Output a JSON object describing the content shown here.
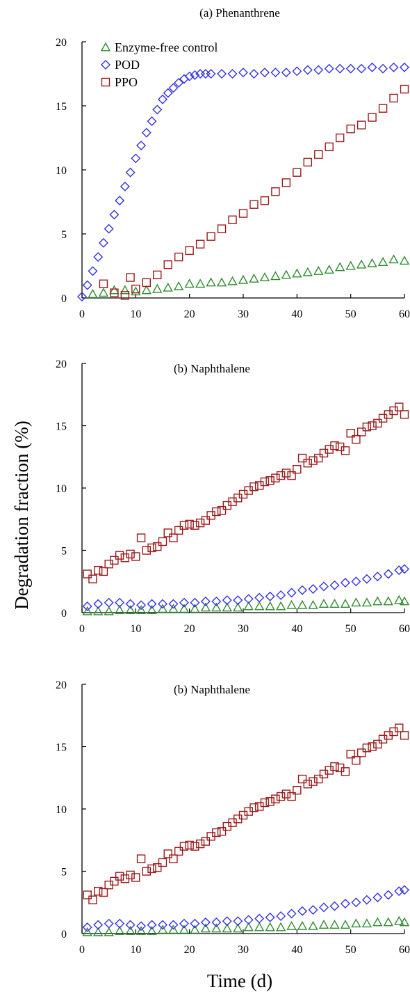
{
  "figure": {
    "ylabel": "Degradation fraction (%)",
    "xlabel": "Time (d)"
  },
  "colors": {
    "enzyme_free": "#2e8b2e",
    "pod": "#3232e6",
    "ppo": "#9b1b1b"
  },
  "chart_data": [
    {
      "type": "scatter",
      "title": "(a) Phenanthrene",
      "xlabel": "",
      "ylabel": "",
      "xlim": [
        0,
        60
      ],
      "ylim": [
        0,
        20
      ],
      "xticks": [
        0,
        10,
        20,
        30,
        40,
        50,
        60
      ],
      "yticks": [
        0,
        5,
        10,
        15,
        20
      ],
      "legend": "top-left",
      "series": [
        {
          "name": "Enzyme-free control",
          "marker": "triangle",
          "x": [
            2,
            4,
            6,
            8,
            10,
            12,
            14,
            16,
            18,
            20,
            22,
            24,
            26,
            28,
            30,
            32,
            34,
            36,
            38,
            40,
            42,
            44,
            46,
            48,
            50,
            52,
            54,
            56,
            58,
            60
          ],
          "y": [
            0.3,
            0.4,
            0.6,
            0.6,
            0.5,
            0.6,
            0.7,
            0.8,
            0.9,
            1.1,
            1.1,
            1.2,
            1.2,
            1.3,
            1.4,
            1.5,
            1.6,
            1.7,
            1.8,
            1.9,
            2.0,
            2.1,
            2.2,
            2.4,
            2.5,
            2.6,
            2.7,
            2.8,
            3.0,
            2.9
          ]
        },
        {
          "name": "POD",
          "marker": "diamond",
          "x": [
            0,
            1,
            2,
            3,
            4,
            5,
            6,
            7,
            8,
            9,
            10,
            11,
            12,
            13,
            14,
            15,
            16,
            17,
            18,
            19,
            20,
            21,
            22,
            23,
            24,
            26,
            28,
            30,
            32,
            34,
            36,
            38,
            40,
            42,
            44,
            46,
            48,
            50,
            52,
            54,
            56,
            58,
            60
          ],
          "y": [
            0.1,
            1.0,
            2.1,
            3.2,
            4.3,
            5.4,
            6.5,
            7.6,
            8.7,
            9.8,
            10.9,
            11.9,
            12.9,
            13.8,
            14.7,
            15.5,
            16.0,
            16.4,
            16.8,
            17.1,
            17.3,
            17.4,
            17.5,
            17.5,
            17.5,
            17.5,
            17.5,
            17.6,
            17.5,
            17.6,
            17.6,
            17.6,
            17.7,
            17.8,
            17.8,
            17.9,
            17.9,
            17.9,
            17.9,
            18.0,
            17.9,
            18.0,
            18.0
          ]
        },
        {
          "name": "PPO",
          "marker": "square",
          "x": [
            4,
            6,
            8,
            9,
            10,
            12,
            14,
            16,
            18,
            20,
            22,
            24,
            26,
            28,
            30,
            32,
            34,
            36,
            38,
            40,
            42,
            44,
            46,
            48,
            50,
            52,
            54,
            56,
            58,
            60
          ],
          "y": [
            1.1,
            0.4,
            0.2,
            1.6,
            0.7,
            1.2,
            1.8,
            2.6,
            3.2,
            3.7,
            4.2,
            4.8,
            5.4,
            6.1,
            6.6,
            7.3,
            7.6,
            8.3,
            9.0,
            9.8,
            10.6,
            11.2,
            11.8,
            12.5,
            13.2,
            13.5,
            14.1,
            14.8,
            15.6,
            16.3
          ]
        }
      ]
    },
    {
      "type": "scatter",
      "title": "(b) Naphthalene",
      "xlabel": "",
      "ylabel": "",
      "xlim": [
        0,
        60
      ],
      "ylim": [
        0,
        20
      ],
      "xticks": [
        0,
        10,
        20,
        30,
        40,
        50,
        60
      ],
      "yticks": [
        0,
        5,
        10,
        15,
        20
      ],
      "series": [
        {
          "name": "Enzyme-free control",
          "marker": "triangle",
          "x": [
            1,
            3,
            5,
            7,
            9,
            11,
            13,
            15,
            17,
            19,
            21,
            23,
            25,
            27,
            29,
            31,
            33,
            35,
            37,
            39,
            41,
            43,
            45,
            47,
            49,
            51,
            53,
            55,
            57,
            59,
            60
          ],
          "y": [
            0.1,
            0.1,
            0.1,
            0.2,
            0.2,
            0.2,
            0.2,
            0.3,
            0.3,
            0.3,
            0.3,
            0.4,
            0.4,
            0.4,
            0.4,
            0.5,
            0.5,
            0.5,
            0.5,
            0.6,
            0.6,
            0.6,
            0.7,
            0.7,
            0.7,
            0.8,
            0.8,
            0.9,
            0.9,
            1.0,
            0.9
          ]
        },
        {
          "name": "POD",
          "marker": "diamond",
          "x": [
            1,
            3,
            5,
            7,
            9,
            11,
            13,
            15,
            17,
            19,
            21,
            23,
            25,
            27,
            29,
            31,
            33,
            35,
            37,
            39,
            41,
            43,
            45,
            47,
            49,
            51,
            53,
            55,
            57,
            59,
            60
          ],
          "y": [
            0.5,
            0.7,
            0.8,
            0.8,
            0.7,
            0.6,
            0.7,
            0.7,
            0.7,
            0.8,
            0.8,
            0.9,
            0.9,
            1.0,
            1.0,
            1.1,
            1.2,
            1.3,
            1.4,
            1.6,
            1.8,
            1.9,
            2.1,
            2.2,
            2.4,
            2.5,
            2.7,
            2.9,
            3.1,
            3.4,
            3.5
          ]
        },
        {
          "name": "PPO",
          "marker": "square",
          "x": [
            1,
            2,
            3,
            4,
            5,
            6,
            7,
            8,
            9,
            10,
            11,
            12,
            13,
            14,
            15,
            16,
            17,
            18,
            19,
            20,
            21,
            22,
            23,
            24,
            25,
            26,
            27,
            28,
            29,
            30,
            31,
            32,
            33,
            34,
            35,
            36,
            37,
            38,
            39,
            40,
            41,
            42,
            43,
            44,
            45,
            46,
            47,
            48,
            49,
            50,
            51,
            52,
            53,
            54,
            55,
            56,
            57,
            58,
            59,
            60
          ],
          "y": [
            3.1,
            2.7,
            3.4,
            3.3,
            3.9,
            4.2,
            4.6,
            4.4,
            4.7,
            4.5,
            6.0,
            5.0,
            5.2,
            5.3,
            5.7,
            6.4,
            6.0,
            6.6,
            7.0,
            7.1,
            7.0,
            7.2,
            7.4,
            7.8,
            8.1,
            8.2,
            8.6,
            8.9,
            9.2,
            9.5,
            9.8,
            10.1,
            10.2,
            10.5,
            10.6,
            10.8,
            11.0,
            11.2,
            11.0,
            11.5,
            12.4,
            12.0,
            12.2,
            12.4,
            12.8,
            13.1,
            13.4,
            13.3,
            13.0,
            14.4,
            13.9,
            14.5,
            14.9,
            15.0,
            15.2,
            15.6,
            15.9,
            16.2,
            16.5,
            15.9
          ]
        }
      ]
    },
    {
      "type": "scatter",
      "title": "(b) Naphthalene",
      "xlabel": "",
      "ylabel": "",
      "xlim": [
        0,
        60
      ],
      "ylim": [
        0,
        20
      ],
      "xticks": [
        0,
        10,
        20,
        30,
        40,
        50,
        60
      ],
      "yticks": [
        0,
        5,
        10,
        15,
        20
      ],
      "series": [
        {
          "name": "Enzyme-free control",
          "marker": "triangle",
          "x": [
            1,
            3,
            5,
            7,
            9,
            11,
            13,
            15,
            17,
            19,
            21,
            23,
            25,
            27,
            29,
            31,
            33,
            35,
            37,
            39,
            41,
            43,
            45,
            47,
            49,
            51,
            53,
            55,
            57,
            59,
            60
          ],
          "y": [
            0.1,
            0.1,
            0.1,
            0.2,
            0.2,
            0.2,
            0.2,
            0.3,
            0.3,
            0.3,
            0.3,
            0.4,
            0.4,
            0.4,
            0.4,
            0.5,
            0.5,
            0.5,
            0.5,
            0.6,
            0.6,
            0.6,
            0.7,
            0.7,
            0.7,
            0.8,
            0.8,
            0.9,
            0.9,
            1.0,
            0.9
          ]
        },
        {
          "name": "POD",
          "marker": "diamond",
          "x": [
            1,
            3,
            5,
            7,
            9,
            11,
            13,
            15,
            17,
            19,
            21,
            23,
            25,
            27,
            29,
            31,
            33,
            35,
            37,
            39,
            41,
            43,
            45,
            47,
            49,
            51,
            53,
            55,
            57,
            59,
            60
          ],
          "y": [
            0.5,
            0.7,
            0.8,
            0.8,
            0.7,
            0.6,
            0.7,
            0.7,
            0.7,
            0.8,
            0.8,
            0.9,
            0.9,
            1.0,
            1.0,
            1.1,
            1.2,
            1.3,
            1.4,
            1.6,
            1.8,
            1.9,
            2.1,
            2.2,
            2.4,
            2.5,
            2.7,
            2.9,
            3.1,
            3.4,
            3.5
          ]
        },
        {
          "name": "PPO",
          "marker": "square",
          "x": [
            1,
            2,
            3,
            4,
            5,
            6,
            7,
            8,
            9,
            10,
            11,
            12,
            13,
            14,
            15,
            16,
            17,
            18,
            19,
            20,
            21,
            22,
            23,
            24,
            25,
            26,
            27,
            28,
            29,
            30,
            31,
            32,
            33,
            34,
            35,
            36,
            37,
            38,
            39,
            40,
            41,
            42,
            43,
            44,
            45,
            46,
            47,
            48,
            49,
            50,
            51,
            52,
            53,
            54,
            55,
            56,
            57,
            58,
            59,
            60
          ],
          "y": [
            3.1,
            2.7,
            3.4,
            3.3,
            3.9,
            4.2,
            4.6,
            4.4,
            4.7,
            4.5,
            6.0,
            5.0,
            5.2,
            5.3,
            5.7,
            6.4,
            6.0,
            6.6,
            7.0,
            7.1,
            7.0,
            7.2,
            7.4,
            7.8,
            8.1,
            8.2,
            8.6,
            8.9,
            9.2,
            9.5,
            9.8,
            10.1,
            10.2,
            10.5,
            10.6,
            10.8,
            11.0,
            11.2,
            11.0,
            11.5,
            12.4,
            12.0,
            12.2,
            12.4,
            12.8,
            13.1,
            13.4,
            13.3,
            13.0,
            14.4,
            13.9,
            14.5,
            14.9,
            15.0,
            15.2,
            15.6,
            15.9,
            16.2,
            16.5,
            15.9
          ]
        }
      ]
    }
  ]
}
